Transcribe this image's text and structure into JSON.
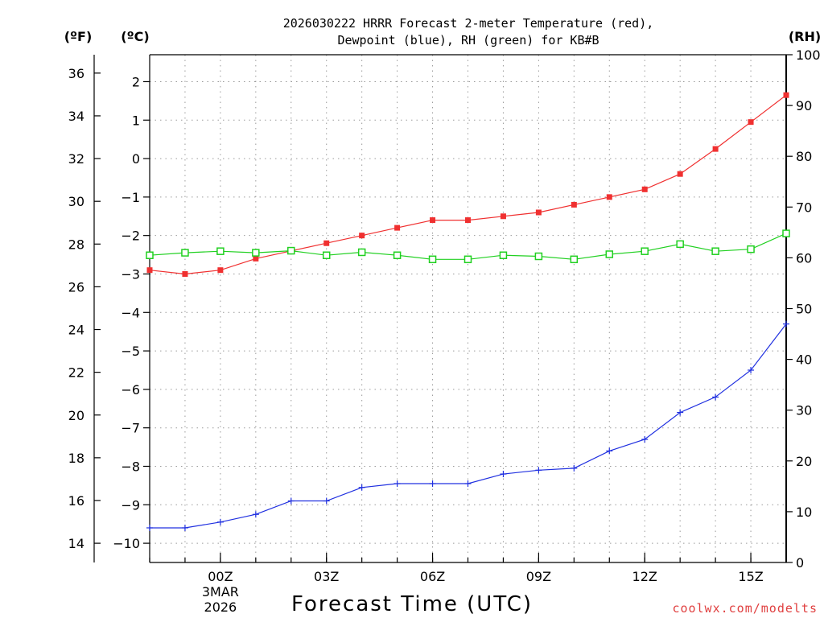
{
  "chart_data": {
    "type": "line",
    "title_lines": [
      "2026030222 HRRR Forecast 2-meter Temperature (red),",
      "Dewpoint (blue), RH (green) for KB#B"
    ],
    "xlabel": "Forecast Time (UTC)",
    "units": {
      "fahrenheit": "(ºF)",
      "celsius": "(ºC)",
      "rh": "(RH)"
    },
    "x_hours": [
      -2,
      -1,
      0,
      1,
      2,
      3,
      4,
      5,
      6,
      7,
      8,
      9,
      10,
      11,
      12,
      13,
      14,
      15,
      16
    ],
    "xlim": [
      -2,
      16
    ],
    "x_ticks": [
      {
        "hour": 0,
        "label": "00Z"
      },
      {
        "hour": 3,
        "label": "03Z"
      },
      {
        "hour": 6,
        "label": "06Z"
      },
      {
        "hour": 9,
        "label": "09Z"
      },
      {
        "hour": 12,
        "label": "12Z"
      },
      {
        "hour": 15,
        "label": "15Z"
      }
    ],
    "date_label": [
      "3MAR",
      "2026"
    ],
    "y_celsius": {
      "lim": [
        -10.5,
        2.7
      ],
      "ticks": [
        {
          "v": 2,
          "label": "2"
        },
        {
          "v": 1,
          "label": "1"
        },
        {
          "v": 0,
          "label": "0"
        },
        {
          "v": -1,
          "label": "−1"
        },
        {
          "v": -2,
          "label": "−2"
        },
        {
          "v": -3,
          "label": "−3"
        },
        {
          "v": -4,
          "label": "−4"
        },
        {
          "v": -5,
          "label": "−5"
        },
        {
          "v": -6,
          "label": "−6"
        },
        {
          "v": -7,
          "label": "−7"
        },
        {
          "v": -8,
          "label": "−8"
        },
        {
          "v": -9,
          "label": "−9"
        },
        {
          "v": -10,
          "label": "−10"
        }
      ]
    },
    "y_fahrenheit": {
      "ticks": [
        {
          "v": 36,
          "label": "36"
        },
        {
          "v": 34,
          "label": "34"
        },
        {
          "v": 32,
          "label": "32"
        },
        {
          "v": 30,
          "label": "30"
        },
        {
          "v": 28,
          "label": "28"
        },
        {
          "v": 26,
          "label": "26"
        },
        {
          "v": 24,
          "label": "24"
        },
        {
          "v": 22,
          "label": "22"
        },
        {
          "v": 20,
          "label": "20"
        },
        {
          "v": 18,
          "label": "18"
        },
        {
          "v": 16,
          "label": "16"
        },
        {
          "v": 14,
          "label": "14"
        }
      ]
    },
    "y_rh": {
      "lim": [
        0,
        100
      ],
      "ticks": [
        {
          "v": 100,
          "label": "100"
        },
        {
          "v": 90,
          "label": "90"
        },
        {
          "v": 80,
          "label": "80"
        },
        {
          "v": 70,
          "label": "70"
        },
        {
          "v": 60,
          "label": "60"
        },
        {
          "v": 50,
          "label": "50"
        },
        {
          "v": 40,
          "label": "40"
        },
        {
          "v": 30,
          "label": "30"
        },
        {
          "v": 20,
          "label": "20"
        },
        {
          "v": 10,
          "label": "10"
        },
        {
          "v": 0,
          "label": "0"
        }
      ]
    },
    "series": [
      {
        "name": "Temperature",
        "axis": "celsius",
        "color": "#f03030",
        "marker": "filled-square",
        "values": [
          -2.9,
          -3.0,
          -2.9,
          -2.6,
          -2.4,
          -2.2,
          -2.0,
          -1.8,
          -1.6,
          -1.6,
          -1.5,
          -1.4,
          -1.2,
          -1.0,
          -0.8,
          -0.4,
          0.25,
          0.95,
          1.65
        ]
      },
      {
        "name": "Dewpoint",
        "axis": "celsius",
        "color": "#2030e0",
        "marker": "plus",
        "values": [
          -9.6,
          -9.6,
          -9.45,
          -9.25,
          -8.9,
          -8.9,
          -8.55,
          -8.45,
          -8.45,
          -8.45,
          -8.2,
          -8.1,
          -8.05,
          -7.6,
          -7.3,
          -6.6,
          -6.2,
          -5.5,
          -4.3
        ]
      },
      {
        "name": "RH",
        "axis": "rh",
        "color": "#20d020",
        "marker": "open-square",
        "values": [
          60.5,
          61.0,
          61.3,
          61.0,
          61.4,
          60.5,
          61.1,
          60.5,
          59.7,
          59.7,
          60.5,
          60.3,
          59.7,
          60.7,
          61.3,
          62.7,
          61.3,
          61.7,
          64.8
        ]
      }
    ]
  },
  "credit": {
    "text": "coolwx.com/modelts",
    "color": "#e04040"
  }
}
